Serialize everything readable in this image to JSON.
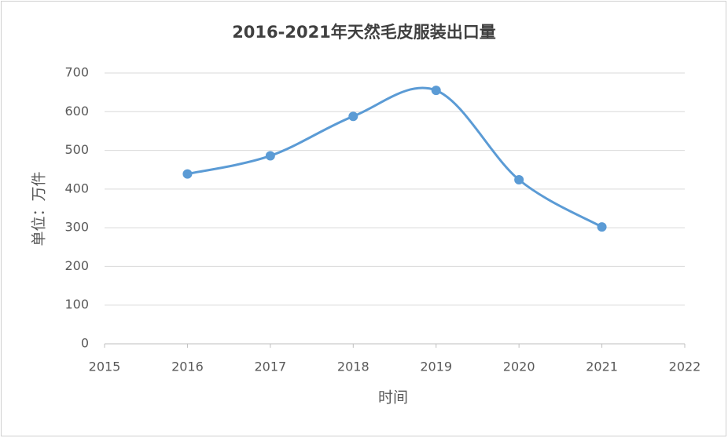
{
  "chart_data": {
    "type": "line",
    "title": "2016-2021年天然毛皮服装出口量",
    "x_label": "时间",
    "y_label": "单位：万件",
    "x": [
      2016,
      2017,
      2018,
      2019,
      2020,
      2021
    ],
    "series": [
      {
        "name": "出口量",
        "color": "#5b9bd5",
        "values": [
          439,
          486,
          588,
          655,
          424,
          302
        ]
      }
    ],
    "xlim": [
      2015,
      2022
    ],
    "xticks": [
      2015,
      2016,
      2017,
      2018,
      2019,
      2020,
      2021,
      2022
    ],
    "ylim": [
      0,
      700
    ],
    "yticks": [
      0,
      100,
      200,
      300,
      400,
      500,
      600,
      700
    ],
    "grid": true,
    "smooth": true
  }
}
